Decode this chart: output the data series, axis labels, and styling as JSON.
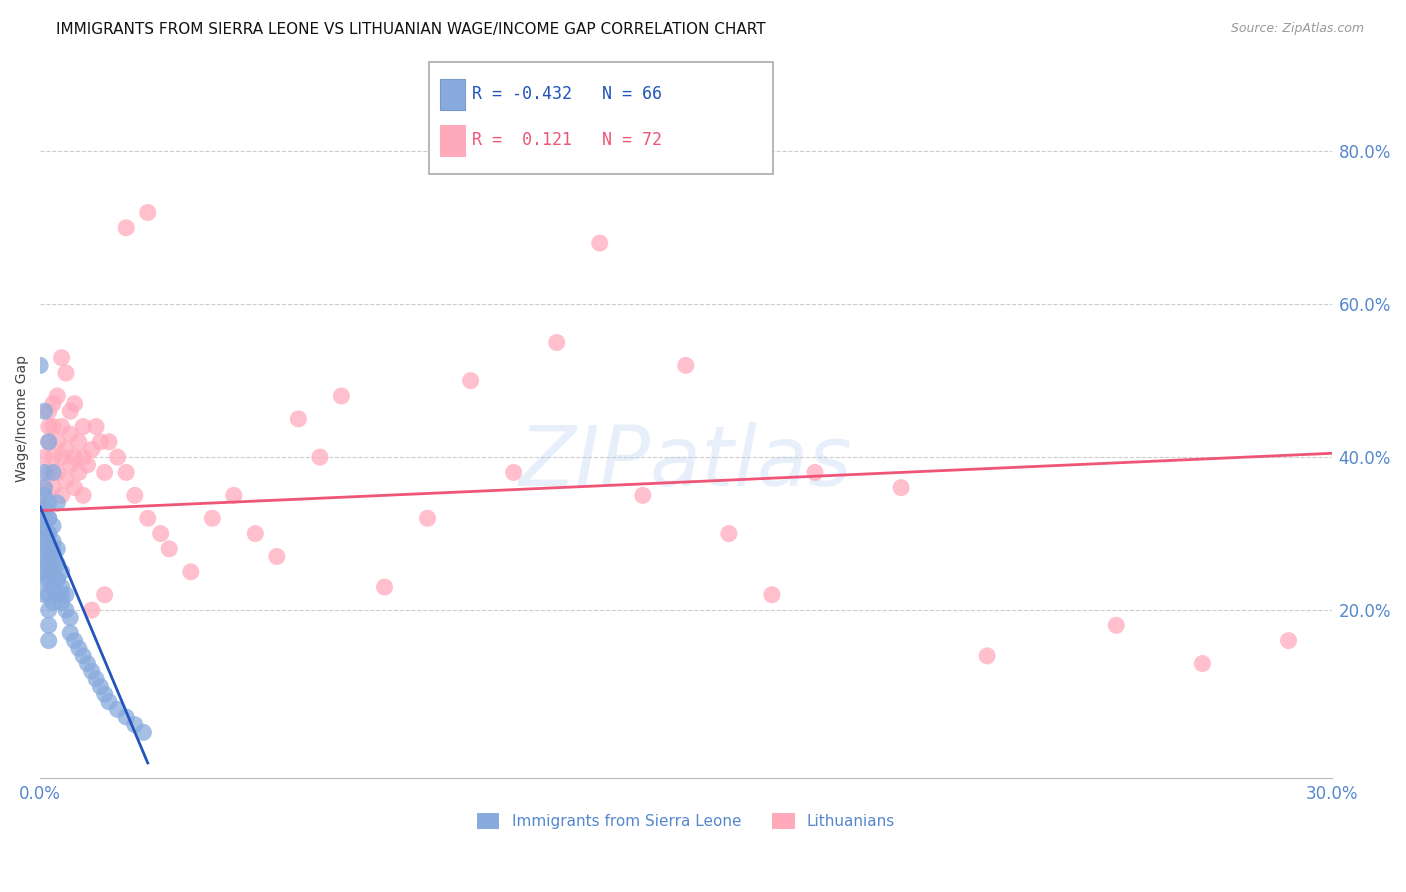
{
  "title": "IMMIGRANTS FROM SIERRA LEONE VS LITHUANIAN WAGE/INCOME GAP CORRELATION CHART",
  "source": "Source: ZipAtlas.com",
  "ylabel": "Wage/Income Gap",
  "x_label_bottom_left": "0.0%",
  "x_label_bottom_right": "30.0%",
  "y_tick_labels": [
    "20.0%",
    "40.0%",
    "60.0%",
    "80.0%"
  ],
  "y_tick_values": [
    0.2,
    0.4,
    0.6,
    0.8
  ],
  "xlim": [
    0.0,
    0.3
  ],
  "ylim": [
    -0.02,
    0.92
  ],
  "blue_R": -0.432,
  "blue_N": 66,
  "pink_R": 0.121,
  "pink_N": 72,
  "blue_label": "Immigrants from Sierra Leone",
  "pink_label": "Lithuanians",
  "blue_color": "#88AADD",
  "pink_color": "#FFAABB",
  "blue_line_color": "#2255BB",
  "pink_line_color": "#EE5577",
  "background_color": "#FFFFFF",
  "grid_color": "#CCCCCC",
  "axis_color": "#5588CC",
  "title_fontsize": 11,
  "source_fontsize": 9,
  "blue_scatter_x": [
    0.0,
    0.0,
    0.001,
    0.001,
    0.001,
    0.001,
    0.001,
    0.001,
    0.001,
    0.001,
    0.001,
    0.001,
    0.001,
    0.002,
    0.002,
    0.002,
    0.002,
    0.002,
    0.002,
    0.002,
    0.002,
    0.002,
    0.002,
    0.003,
    0.003,
    0.003,
    0.003,
    0.003,
    0.003,
    0.004,
    0.004,
    0.004,
    0.004,
    0.005,
    0.005,
    0.005,
    0.006,
    0.006,
    0.007,
    0.007,
    0.008,
    0.009,
    0.01,
    0.011,
    0.012,
    0.013,
    0.014,
    0.015,
    0.016,
    0.018,
    0.02,
    0.022,
    0.024,
    0.0,
    0.001,
    0.001,
    0.002,
    0.002,
    0.003,
    0.003,
    0.004,
    0.005,
    0.001,
    0.002,
    0.003,
    0.004
  ],
  "blue_scatter_y": [
    0.32,
    0.3,
    0.35,
    0.33,
    0.3,
    0.28,
    0.26,
    0.24,
    0.22,
    0.31,
    0.29,
    0.27,
    0.25,
    0.34,
    0.32,
    0.3,
    0.28,
    0.26,
    0.24,
    0.22,
    0.2,
    0.18,
    0.16,
    0.31,
    0.29,
    0.27,
    0.25,
    0.23,
    0.21,
    0.28,
    0.26,
    0.24,
    0.22,
    0.25,
    0.23,
    0.21,
    0.22,
    0.2,
    0.19,
    0.17,
    0.16,
    0.15,
    0.14,
    0.13,
    0.12,
    0.11,
    0.1,
    0.09,
    0.08,
    0.07,
    0.06,
    0.05,
    0.04,
    0.52,
    0.38,
    0.36,
    0.32,
    0.3,
    0.28,
    0.26,
    0.24,
    0.22,
    0.46,
    0.42,
    0.38,
    0.34
  ],
  "pink_scatter_x": [
    0.0,
    0.001,
    0.001,
    0.002,
    0.002,
    0.002,
    0.003,
    0.003,
    0.003,
    0.004,
    0.004,
    0.005,
    0.005,
    0.005,
    0.006,
    0.006,
    0.007,
    0.007,
    0.008,
    0.008,
    0.009,
    0.009,
    0.01,
    0.01,
    0.011,
    0.012,
    0.013,
    0.014,
    0.015,
    0.016,
    0.018,
    0.02,
    0.022,
    0.025,
    0.028,
    0.03,
    0.035,
    0.04,
    0.045,
    0.05,
    0.055,
    0.06,
    0.065,
    0.07,
    0.08,
    0.09,
    0.1,
    0.11,
    0.12,
    0.13,
    0.14,
    0.15,
    0.16,
    0.17,
    0.18,
    0.2,
    0.22,
    0.25,
    0.27,
    0.29,
    0.002,
    0.003,
    0.004,
    0.005,
    0.006,
    0.007,
    0.008,
    0.01,
    0.012,
    0.015,
    0.02,
    0.025
  ],
  "pink_scatter_y": [
    0.34,
    0.36,
    0.4,
    0.38,
    0.42,
    0.44,
    0.36,
    0.4,
    0.44,
    0.38,
    0.42,
    0.35,
    0.4,
    0.44,
    0.37,
    0.41,
    0.39,
    0.43,
    0.36,
    0.4,
    0.38,
    0.42,
    0.35,
    0.44,
    0.39,
    0.41,
    0.44,
    0.42,
    0.38,
    0.42,
    0.4,
    0.38,
    0.35,
    0.32,
    0.3,
    0.28,
    0.25,
    0.32,
    0.35,
    0.3,
    0.27,
    0.45,
    0.4,
    0.48,
    0.23,
    0.32,
    0.5,
    0.38,
    0.55,
    0.68,
    0.35,
    0.52,
    0.3,
    0.22,
    0.38,
    0.36,
    0.14,
    0.18,
    0.13,
    0.16,
    0.46,
    0.47,
    0.48,
    0.53,
    0.51,
    0.46,
    0.47,
    0.4,
    0.2,
    0.22,
    0.7,
    0.72
  ],
  "blue_line_x": [
    0.0,
    0.025
  ],
  "blue_line_y": [
    0.335,
    0.0
  ],
  "pink_line_x": [
    0.0,
    0.3
  ],
  "pink_line_y": [
    0.33,
    0.405
  ],
  "legend_box": {
    "text1": "R = -0.432   N = 66",
    "text2": "R =  0.121   N = 72",
    "color1": "#2255BB",
    "color2": "#EE5577",
    "square1": "#88AADD",
    "square2": "#FFAABB"
  }
}
